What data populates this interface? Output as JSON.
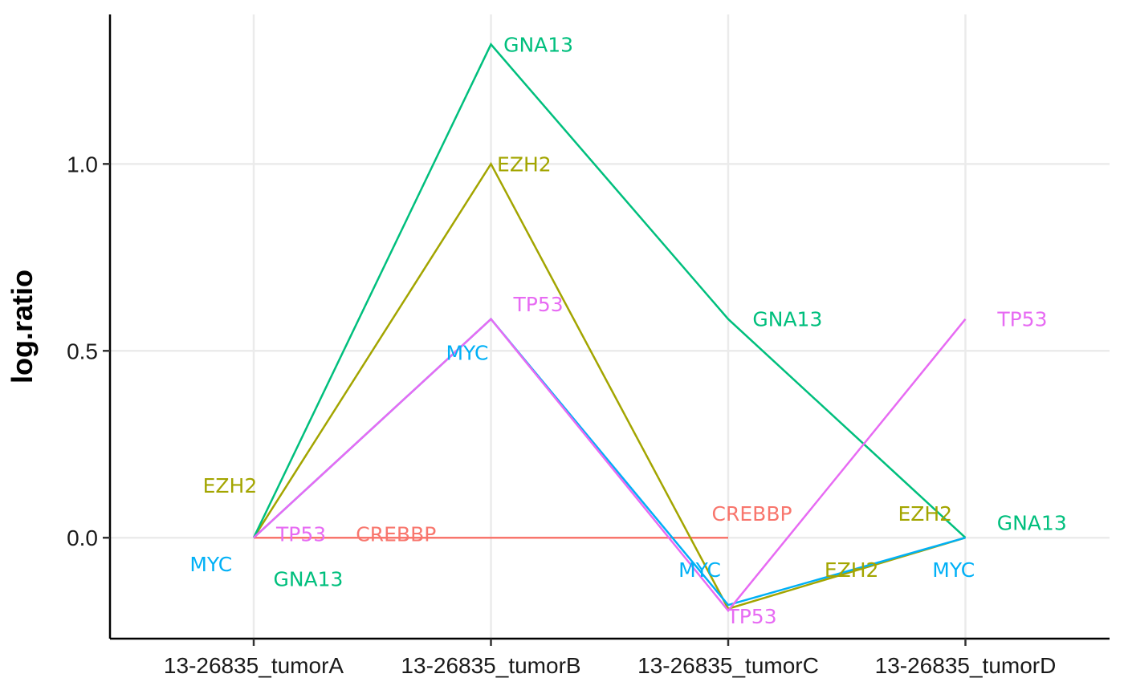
{
  "chart_data": {
    "type": "line",
    "title": "",
    "xlabel": "",
    "ylabel": "log.ratio",
    "categories": [
      "13-26835_tumorA",
      "13-26835_tumorB",
      "13-26835_tumorC",
      "13-26835_tumorD"
    ],
    "ylim": [
      -0.27,
      1.4
    ],
    "yticks": [
      {
        "value": 0.0,
        "label": "0.0"
      },
      {
        "value": 0.5,
        "label": "0.5"
      },
      {
        "value": 1.0,
        "label": "1.0"
      }
    ],
    "grid": true,
    "legend": "none",
    "series": [
      {
        "name": "CREBBP",
        "color": "#F8766D",
        "values": [
          0.0,
          0.0,
          0.0,
          null
        ]
      },
      {
        "name": "EZH2",
        "color": "#A3A500",
        "values": [
          0.0,
          1.0,
          -0.19,
          0.0
        ]
      },
      {
        "name": "GNA13",
        "color": "#00BF7D",
        "values": [
          0.0,
          1.32,
          0.585,
          0.0
        ]
      },
      {
        "name": "MYC",
        "color": "#00B0F6",
        "values": [
          0.0,
          0.585,
          -0.18,
          0.0
        ]
      },
      {
        "name": "TP53",
        "color": "#E76BF3",
        "values": [
          0.0,
          0.585,
          -0.195,
          0.585
        ]
      }
    ],
    "point_labels": [
      {
        "series": "CREBBP",
        "text": "CREBBP",
        "x": 0.6,
        "y": 0.01
      },
      {
        "series": "CREBBP",
        "text": "CREBBP",
        "x": 2.1,
        "y": 0.065
      },
      {
        "series": "EZH2",
        "text": "EZH2",
        "x": -0.1,
        "y": 0.14
      },
      {
        "series": "EZH2",
        "text": "EZH2",
        "x": 1.14,
        "y": 1.0
      },
      {
        "series": "EZH2",
        "text": "EZH2",
        "x": 2.52,
        "y": -0.085
      },
      {
        "series": "EZH2",
        "text": "EZH2",
        "x": 2.83,
        "y": 0.065
      },
      {
        "series": "GNA13",
        "text": "GNA13",
        "x": 0.23,
        "y": -0.11
      },
      {
        "series": "GNA13",
        "text": "GNA13",
        "x": 1.2,
        "y": 1.32
      },
      {
        "series": "GNA13",
        "text": "GNA13",
        "x": 2.25,
        "y": 0.585
      },
      {
        "series": "GNA13",
        "text": "GNA13",
        "x": 3.28,
        "y": 0.04
      },
      {
        "series": "MYC",
        "text": "MYC",
        "x": -0.18,
        "y": -0.07
      },
      {
        "series": "MYC",
        "text": "MYC",
        "x": 0.9,
        "y": 0.495
      },
      {
        "series": "MYC",
        "text": "MYC",
        "x": 1.88,
        "y": -0.085
      },
      {
        "series": "MYC",
        "text": "MYC",
        "x": 2.95,
        "y": -0.085
      },
      {
        "series": "TP53",
        "text": "TP53",
        "x": 0.2,
        "y": 0.01
      },
      {
        "series": "TP53",
        "text": "TP53",
        "x": 1.2,
        "y": 0.625
      },
      {
        "series": "TP53",
        "text": "TP53",
        "x": 2.1,
        "y": -0.21
      },
      {
        "series": "TP53",
        "text": "TP53",
        "x": 3.24,
        "y": 0.585
      }
    ]
  }
}
